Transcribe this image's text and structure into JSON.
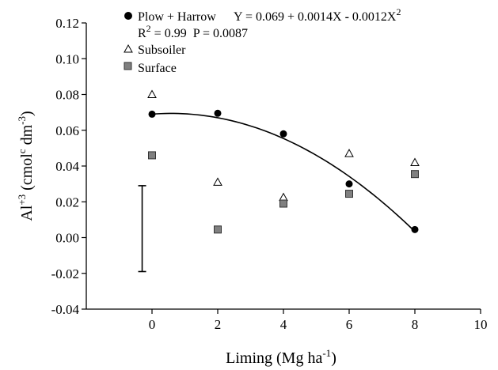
{
  "chart_data": {
    "type": "scatter",
    "xlabel": {
      "main": "Liming (Mg ha",
      "sup": "-1",
      "close": ")"
    },
    "ylabel": {
      "main": "Al",
      "sup1": "+3",
      "mid": " (cmol",
      "sup2": "c",
      "mid2": " dm",
      "sup3": "-3",
      "close": ")"
    },
    "xlim": [
      -2,
      10
    ],
    "ylim": [
      -0.04,
      0.12
    ],
    "x_ticks": [
      "0",
      "2",
      "4",
      "6",
      "8",
      "10"
    ],
    "y_ticks": [
      "-0.04",
      "-0.02",
      "0.00",
      "0.02",
      "0.04",
      "0.06",
      "0.08",
      "0.10",
      "0.12"
    ],
    "series": [
      {
        "name": "Plow + Harrow",
        "marker": "filled-circle",
        "color": "#000000",
        "x": [
          0,
          2,
          4,
          6,
          8
        ],
        "y": [
          0.069,
          0.0695,
          0.058,
          0.03,
          0.0045
        ]
      },
      {
        "name": "Subsoiler",
        "marker": "open-triangle",
        "color": "#000000",
        "x": [
          0,
          2,
          4,
          6,
          8
        ],
        "y": [
          0.08,
          0.031,
          0.0225,
          0.047,
          0.042
        ]
      },
      {
        "name": "Surface",
        "marker": "gray-square",
        "color": "#808080",
        "x": [
          0,
          2,
          4,
          6,
          8
        ],
        "y": [
          0.046,
          0.0045,
          0.019,
          0.0245,
          0.0355
        ]
      }
    ],
    "fit": {
      "series": "Plow + Harrow",
      "intercept": 0.069,
      "linear": 0.0014,
      "quadratic": -0.0012,
      "x_range": [
        0,
        8
      ],
      "equation": {
        "y": "Y = 0.069 + 0.0014X ",
        "dash": "-",
        "rest": " 0.0012X",
        "sup": "2"
      },
      "stats": {
        "r": "R",
        "sup": "2",
        "rest": " = 0.99  P = 0.0087"
      }
    },
    "error_bar": {
      "x": -0.3,
      "y_low": -0.019,
      "y_high": 0.029
    }
  }
}
